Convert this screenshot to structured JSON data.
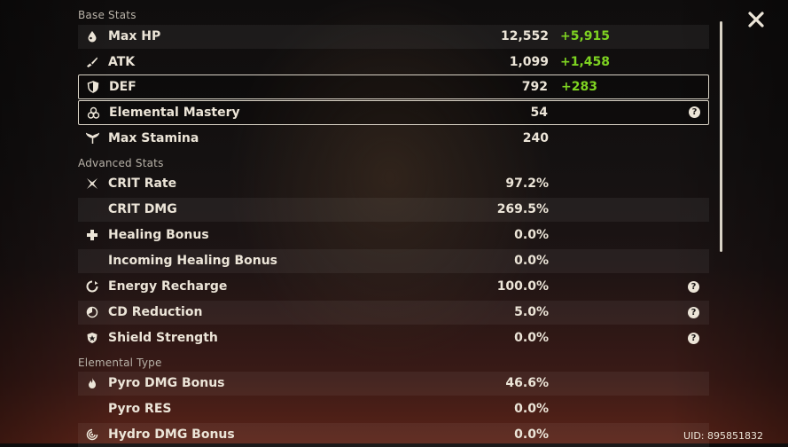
{
  "sections": {
    "base": "Base Stats",
    "advanced": "Advanced Stats",
    "elemental": "Elemental Type"
  },
  "base_stats": [
    {
      "label": "Max HP",
      "value": "12,552",
      "bonus": "+5,915",
      "icon": "hp-drop-icon"
    },
    {
      "label": "ATK",
      "value": "1,099",
      "bonus": "+1,458",
      "icon": "sword-icon"
    },
    {
      "label": "DEF",
      "value": "792",
      "bonus": "+283",
      "icon": "shield-icon"
    },
    {
      "label": "Elemental Mastery",
      "value": "54",
      "icon": "elemental-mastery-icon",
      "help": "?"
    },
    {
      "label": "Max Stamina",
      "value": "240",
      "icon": "stamina-icon"
    }
  ],
  "advanced_stats": [
    {
      "label": "CRIT Rate",
      "value": "97.2%",
      "icon": "crit-icon"
    },
    {
      "label": "CRIT DMG",
      "value": "269.5%"
    },
    {
      "label": "Healing Bonus",
      "value": "0.0%",
      "icon": "healing-cross-icon"
    },
    {
      "label": "Incoming Healing Bonus",
      "value": "0.0%"
    },
    {
      "label": "Energy Recharge",
      "value": "100.0%",
      "icon": "energy-recharge-icon",
      "help": "?"
    },
    {
      "label": "CD Reduction",
      "value": "5.0%",
      "icon": "cd-reduction-icon",
      "help": "?"
    },
    {
      "label": "Shield Strength",
      "value": "0.0%",
      "icon": "shield-strength-icon",
      "help": "?"
    }
  ],
  "elemental_stats": [
    {
      "label": "Pyro DMG Bonus",
      "value": "46.6%",
      "icon": "pyro-icon"
    },
    {
      "label": "Pyro RES",
      "value": "0.0%"
    },
    {
      "label": "Hydro DMG Bonus",
      "value": "0.0%",
      "icon": "hydro-icon"
    }
  ],
  "uid": "UID: 895851832",
  "colors": {
    "bonus": "#7ed321",
    "text": "#ece5d8",
    "selected_border": "#d9d3c6"
  }
}
